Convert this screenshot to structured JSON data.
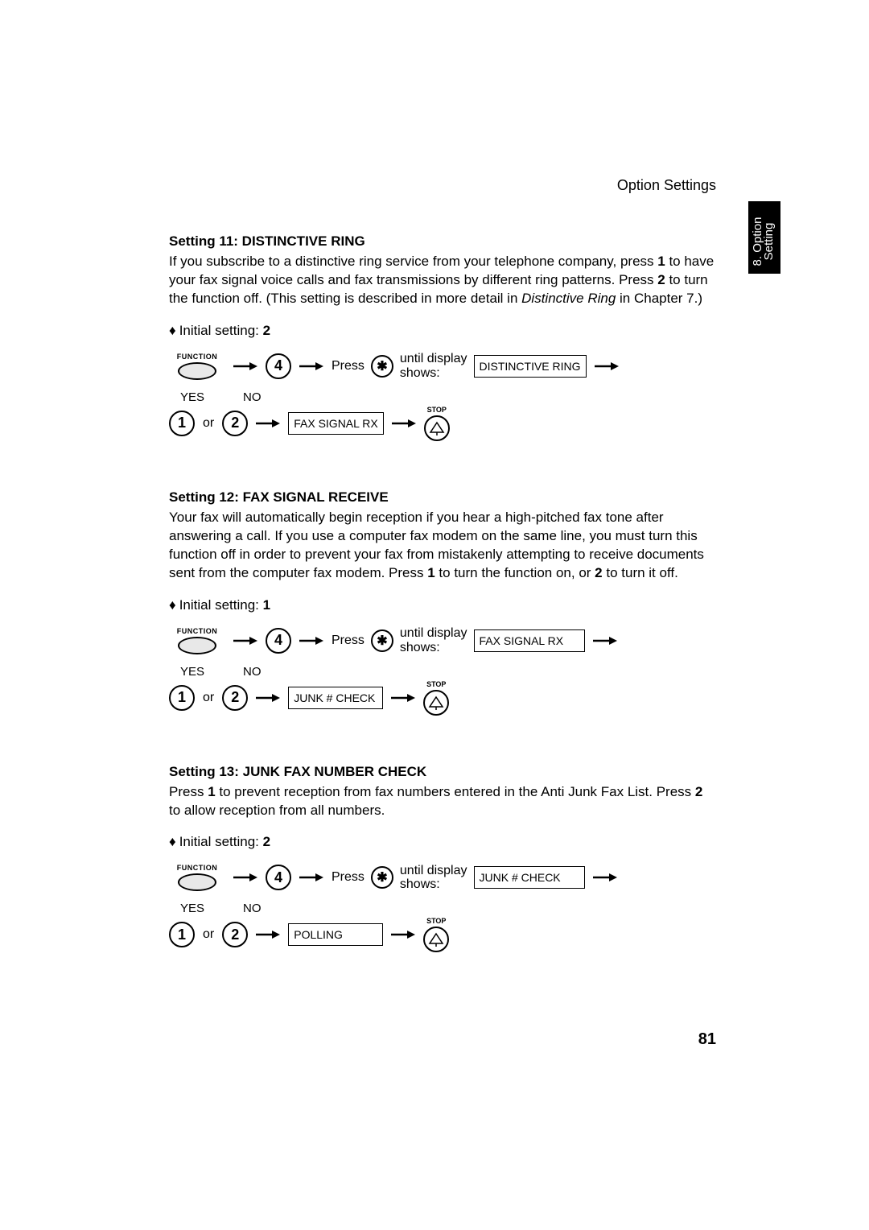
{
  "header": "Option Settings",
  "sideTab": {
    "line1": "8. Option",
    "line2": "Setting"
  },
  "pageNumber": "81",
  "labels": {
    "function": "FUNCTION",
    "press": "Press",
    "untilLine1": "until display",
    "untilLine2": "shows:",
    "yes": "YES",
    "no": "NO",
    "or": "or",
    "stop": "STOP",
    "key4": "4",
    "keyStar": "✱",
    "key1": "1",
    "key2": "2"
  },
  "settings": [
    {
      "title": "Setting 11: DISTINCTIVE RING",
      "bodyParts": [
        {
          "text": "If you subscribe to a distinctive ring service from your telephone company, press "
        },
        {
          "text": "1",
          "bold": true
        },
        {
          "text": " to have your fax signal voice calls and fax transmissions by different ring patterns. Press "
        },
        {
          "text": "2",
          "bold": true
        },
        {
          "text": " to turn the function off. (This setting is described in more detail in "
        },
        {
          "text": "Distinctive Ring",
          "italic": true
        },
        {
          "text": " in Chapter 7.)"
        }
      ],
      "initialSetting": "2",
      "display1": "DISTINCTIVE RING",
      "display2": "FAX SIGNAL RX"
    },
    {
      "title": "Setting 12: FAX SIGNAL RECEIVE",
      "bodyParts": [
        {
          "text": "Your fax will automatically begin reception if you hear a high-pitched fax tone after answering a call. If you use a computer fax modem on the same line, you must turn this function off in order to prevent your fax from mistakenly attempting to receive documents sent from the computer fax modem. Press "
        },
        {
          "text": "1",
          "bold": true
        },
        {
          "text": " to turn the function on, or "
        },
        {
          "text": "2",
          "bold": true
        },
        {
          "text": " to turn it off."
        }
      ],
      "initialSetting": "1",
      "display1": "FAX SIGNAL RX",
      "display2": "JUNK # CHECK"
    },
    {
      "title": "Setting 13: JUNK FAX NUMBER CHECK",
      "bodyParts": [
        {
          "text": "Press "
        },
        {
          "text": "1",
          "bold": true
        },
        {
          "text": " to prevent reception from fax numbers entered in the Anti Junk Fax List. Press "
        },
        {
          "text": "2",
          "bold": true
        },
        {
          "text": " to allow reception from all numbers."
        }
      ],
      "initialSetting": "2",
      "display1": "JUNK # CHECK",
      "display2": "POLLING"
    }
  ]
}
